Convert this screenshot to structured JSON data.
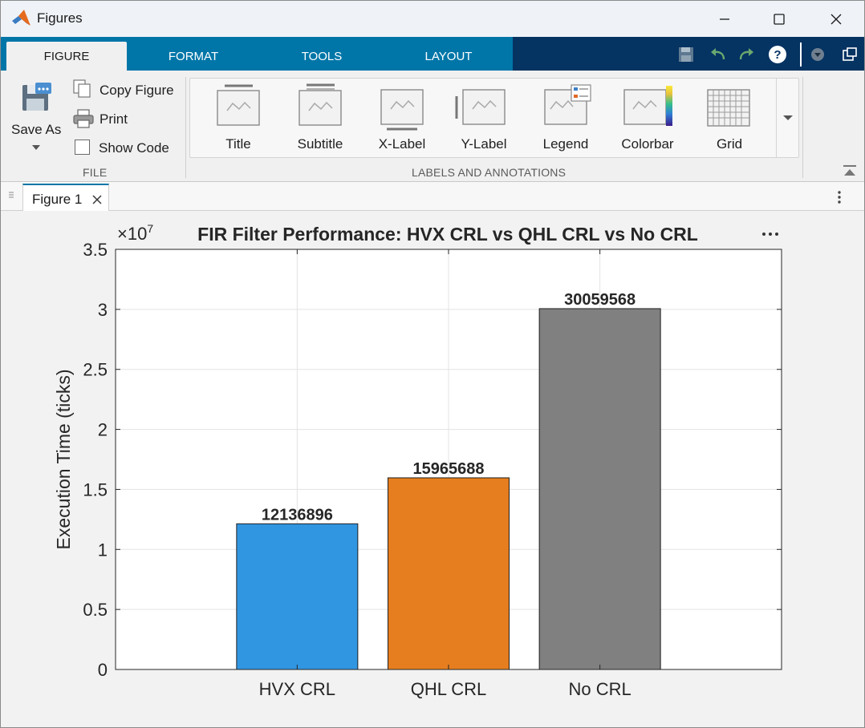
{
  "window": {
    "title": "Figures"
  },
  "icons": {
    "app": "matlab-logo-icon",
    "minimize": "minimize-icon",
    "maximize": "maximize-icon",
    "close": "close-icon",
    "save": "save-icon",
    "undo": "undo-icon",
    "redo": "redo-icon",
    "help": "help-icon",
    "collapse": "collapse-icon",
    "undock": "undock-icon"
  },
  "ribbon": {
    "tabs": [
      {
        "label": "FIGURE",
        "active": true
      },
      {
        "label": "FORMAT",
        "active": false
      },
      {
        "label": "TOOLS",
        "active": false
      },
      {
        "label": "LAYOUT",
        "active": false
      }
    ],
    "file_group": {
      "caption": "FILE",
      "save_as": "Save As",
      "copy_figure": "Copy Figure",
      "print": "Print",
      "show_code": "Show Code",
      "show_code_checked": false
    },
    "labels_group": {
      "caption": "LABELS AND ANNOTATIONS",
      "items": [
        "Title",
        "Subtitle",
        "X-Label",
        "Y-Label",
        "Legend",
        "Colorbar",
        "Grid"
      ]
    }
  },
  "document": {
    "tab_label": "Figure 1"
  },
  "colors": {
    "ribbon_dark": "#053362",
    "ribbon_tab": "#0076a8",
    "bar_hvx": "#3196e2",
    "bar_qhl": "#e67e1f",
    "bar_nocrl": "#808080"
  },
  "chart_data": {
    "type": "bar",
    "title": "FIR Filter Performance: HVX CRL vs QHL CRL vs No CRL",
    "xlabel": "",
    "ylabel": "Execution Time (ticks)",
    "exponent_label": "×10",
    "exponent_power": "7",
    "categories": [
      "HVX CRL",
      "QHL CRL",
      "No CRL"
    ],
    "values": [
      12136896,
      15965688,
      30059568
    ],
    "data_labels": [
      "12136896",
      "15965688",
      "30059568"
    ],
    "bar_colors": [
      "#3196e2",
      "#e67e1f",
      "#808080"
    ],
    "ylim": [
      0,
      35000000
    ],
    "yticks": [
      0,
      5000000,
      10000000,
      15000000,
      20000000,
      25000000,
      30000000,
      35000000
    ],
    "ytick_labels": [
      "0",
      "0.5",
      "1",
      "1.5",
      "2",
      "2.5",
      "3",
      "3.5"
    ],
    "grid": true
  }
}
